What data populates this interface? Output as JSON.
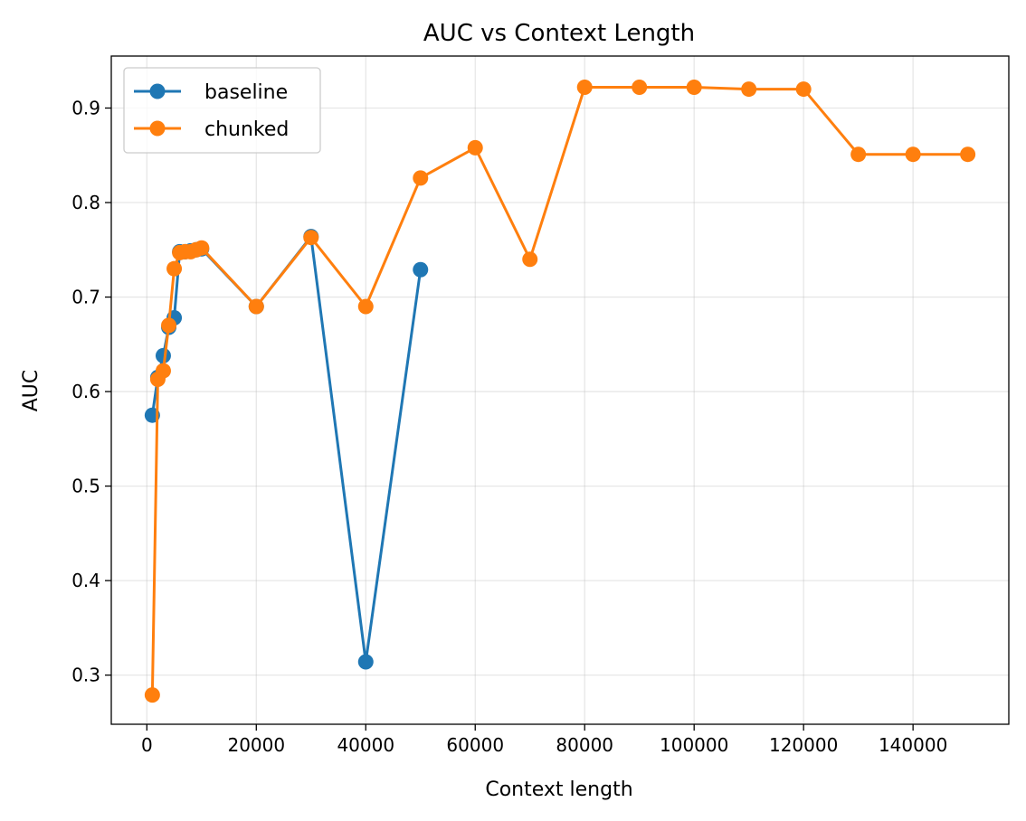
{
  "chart_data": {
    "type": "line",
    "title": "AUC vs Context Length",
    "xlabel": "Context length",
    "ylabel": "AUC",
    "xlim": [
      -6500,
      157500
    ],
    "ylim": [
      0.248,
      0.955
    ],
    "xticks": [
      0,
      20000,
      40000,
      60000,
      80000,
      100000,
      120000,
      140000
    ],
    "xtick_labels": [
      "0",
      "20000",
      "40000",
      "60000",
      "80000",
      "100000",
      "120000",
      "140000"
    ],
    "yticks": [
      0.3,
      0.4,
      0.5,
      0.6,
      0.7,
      0.8,
      0.9
    ],
    "ytick_labels": [
      "0.3",
      "0.4",
      "0.5",
      "0.6",
      "0.7",
      "0.8",
      "0.9"
    ],
    "grid": true,
    "legend_position": "top-left",
    "series": [
      {
        "name": "baseline",
        "color": "#1f77b4",
        "x": [
          1000,
          2000,
          3000,
          4000,
          5000,
          6000,
          7000,
          8000,
          9000,
          10000,
          20000,
          30000,
          40000,
          50000
        ],
        "y": [
          0.575,
          0.615,
          0.638,
          0.668,
          0.678,
          0.748,
          0.748,
          0.749,
          0.75,
          0.751,
          0.69,
          0.764,
          0.314,
          0.729
        ]
      },
      {
        "name": "chunked",
        "color": "#ff7f0e",
        "x": [
          1000,
          2000,
          3000,
          4000,
          5000,
          6000,
          7000,
          8000,
          9000,
          10000,
          20000,
          30000,
          40000,
          50000,
          60000,
          70000,
          80000,
          90000,
          100000,
          110000,
          120000,
          130000,
          140000,
          150000
        ],
        "y": [
          0.279,
          0.613,
          0.622,
          0.67,
          0.73,
          0.747,
          0.748,
          0.748,
          0.75,
          0.752,
          0.69,
          0.763,
          0.69,
          0.826,
          0.858,
          0.74,
          0.922,
          0.922,
          0.922,
          0.92,
          0.92,
          0.851,
          0.851,
          0.851
        ]
      }
    ]
  }
}
